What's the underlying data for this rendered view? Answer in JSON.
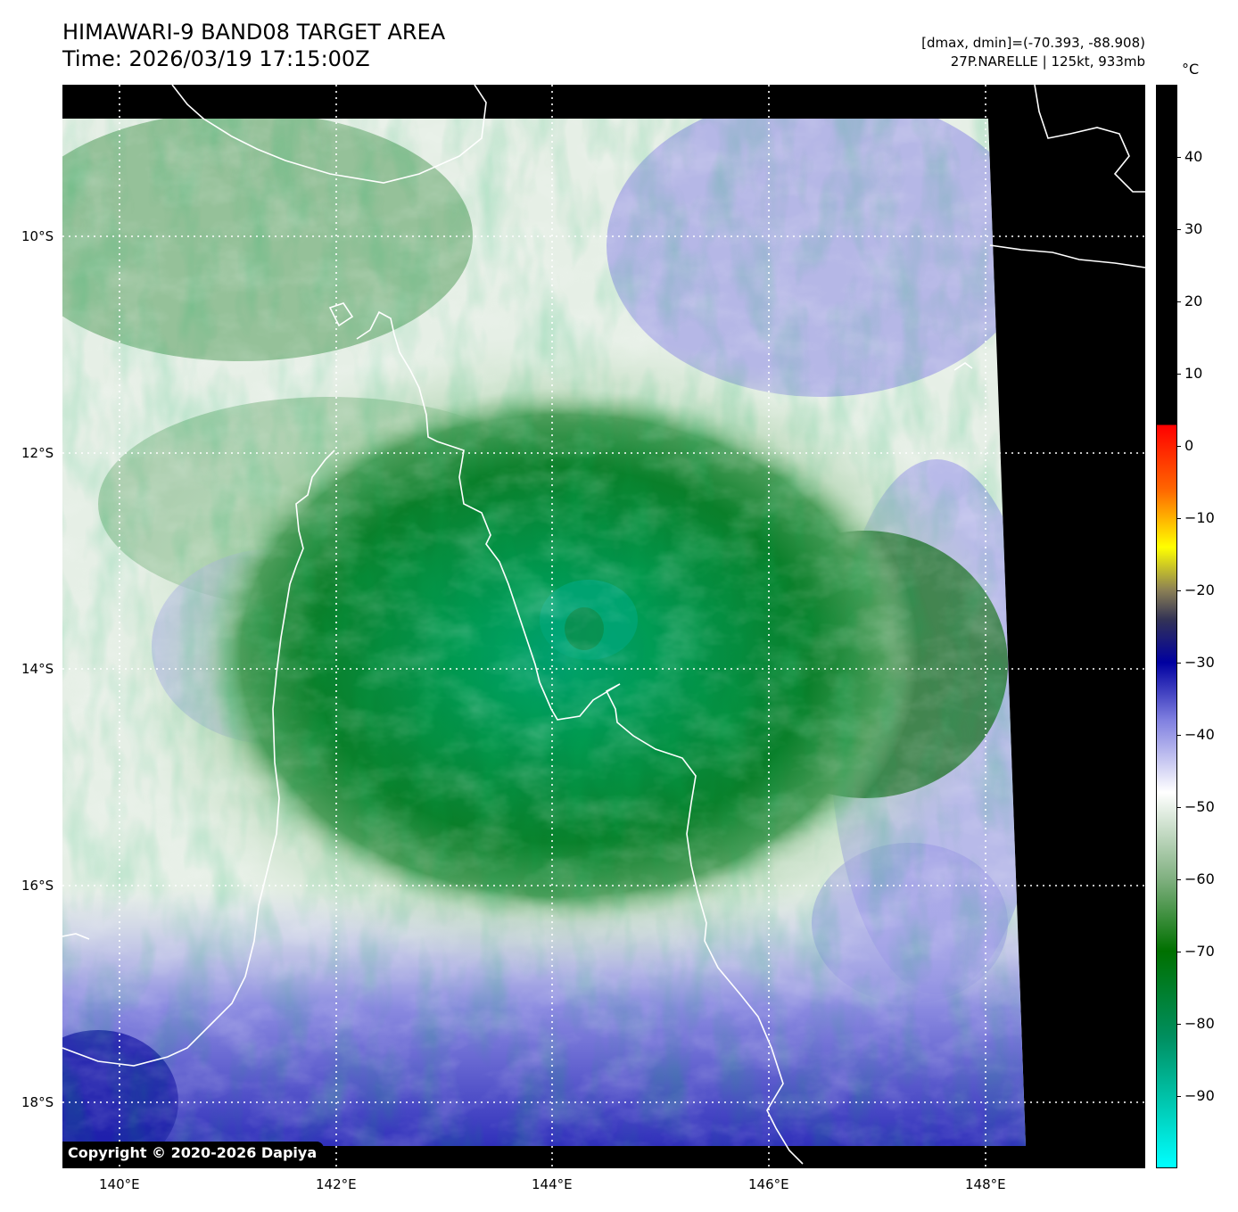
{
  "header": {
    "title_line1": "HIMAWARI-9 BAND08 TARGET AREA",
    "title_line2": "Time: 2026/03/19 17:15:00Z",
    "dmax_dmin": "[dmax, dmin]=(-70.393, -88.908)",
    "storm_info": "27P.NARELLE | 125kt, 933mb"
  },
  "map": {
    "lat_labels": [
      "10°S",
      "12°S",
      "14°S",
      "16°S",
      "18°S"
    ],
    "lon_labels": [
      "140°E",
      "142°E",
      "144°E",
      "146°E",
      "148°E"
    ],
    "lat_values": [
      -10,
      -12,
      -14,
      -16,
      -18
    ],
    "lon_values": [
      140,
      142,
      144,
      146,
      148
    ],
    "extent": {
      "lon_min": 139.47,
      "lon_max": 149.47,
      "lat_min": -18.6,
      "lat_max": -8.6
    },
    "gridlines": true,
    "copyright": "Copyright © 2020-2026 Dapiya"
  },
  "colorbar": {
    "unit": "°C",
    "labels": [
      "40",
      "30",
      "20",
      "10",
      "0",
      "−10",
      "−20",
      "−30",
      "−40",
      "−50",
      "−60",
      "−70",
      "−80",
      "−90"
    ],
    "values": [
      40,
      30,
      20,
      10,
      0,
      -10,
      -20,
      -30,
      -40,
      -50,
      -60,
      -70,
      -80,
      -90
    ],
    "range": [
      -100,
      50
    ],
    "stops": [
      {
        "value": 50,
        "color": "#000000"
      },
      {
        "value": 3,
        "color": "#000000"
      },
      {
        "value": 2.9,
        "color": "#ff0000"
      },
      {
        "value": -6,
        "color": "#ff6600"
      },
      {
        "value": -14,
        "color": "#ffff00"
      },
      {
        "value": -20,
        "color": "#8a7f55"
      },
      {
        "value": -24,
        "color": "#333355"
      },
      {
        "value": -30,
        "color": "#0000a0"
      },
      {
        "value": -38,
        "color": "#8080e0"
      },
      {
        "value": -48,
        "color": "#ffffff"
      },
      {
        "value": -60,
        "color": "#80b080"
      },
      {
        "value": -70,
        "color": "#007000"
      },
      {
        "value": -82,
        "color": "#008f60"
      },
      {
        "value": -100,
        "color": "#00ffff"
      }
    ]
  }
}
